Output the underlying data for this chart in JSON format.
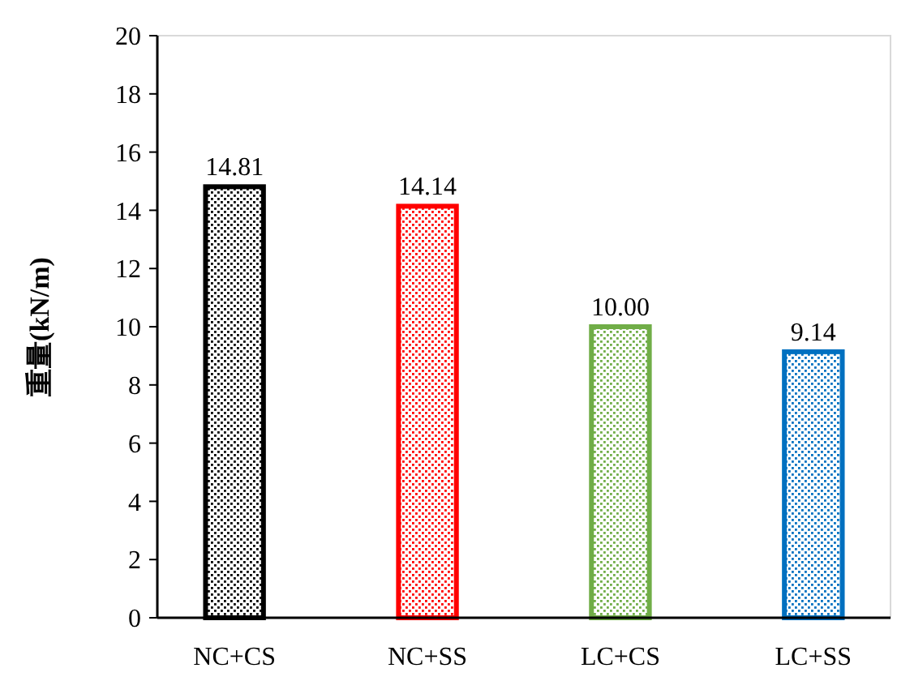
{
  "chart_data": {
    "type": "bar",
    "ylabel": "重量(kN/m)",
    "categories": [
      "NC+CS",
      "NC+SS",
      "LC+CS",
      "LC+SS"
    ],
    "values": [
      14.81,
      14.14,
      10.0,
      9.14
    ],
    "colors": [
      "#000000",
      "#ff0000",
      "#70ad47",
      "#0070c0"
    ],
    "value_labels": [
      "14.81",
      "14.14",
      "10.00",
      "9.14"
    ],
    "ylim": [
      0,
      20
    ],
    "yticks": [
      0,
      2,
      4,
      6,
      8,
      10,
      12,
      14,
      16,
      18,
      20
    ],
    "grid": false
  }
}
